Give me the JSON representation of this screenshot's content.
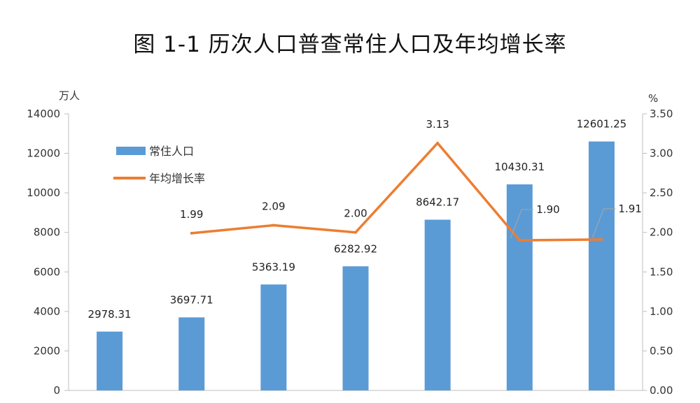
{
  "title": "图 1-1   历次人口普查常住人口及年均增长率",
  "chart_data": {
    "type": "bar",
    "title": "图 1-1   历次人口普查常住人口及年均增长率",
    "y_left_unit": "万人",
    "y_right_unit": "%",
    "y_left_ticks": [
      "0",
      "2000",
      "4000",
      "6000",
      "8000",
      "10000",
      "12000",
      "14000"
    ],
    "y_right_ticks": [
      "0.00",
      "0.50",
      "1.00",
      "1.50",
      "2.00",
      "2.50",
      "3.00",
      "3.50"
    ],
    "ylim_left": [
      0,
      14000
    ],
    "ylim_right": [
      0,
      3.5
    ],
    "series": [
      {
        "name": "常住人口",
        "type": "bar",
        "axis": "left",
        "color": "#5b9bd5",
        "values": [
          2978.31,
          3697.71,
          5363.19,
          6282.92,
          8642.17,
          10430.31,
          12601.25
        ],
        "labels": [
          "2978.31",
          "3697.71",
          "5363.19",
          "6282.92",
          "8642.17",
          "10430.31",
          "12601.25"
        ]
      },
      {
        "name": "年均增长率",
        "type": "line",
        "axis": "right",
        "color": "#ed7d31",
        "values": [
          null,
          1.99,
          2.09,
          2.0,
          3.13,
          1.9,
          1.91
        ],
        "labels": [
          "",
          "1.99",
          "2.09",
          "2.00",
          "3.13",
          "1.90",
          "1.91"
        ]
      }
    ],
    "legend_position": "top-left",
    "grid": false
  }
}
